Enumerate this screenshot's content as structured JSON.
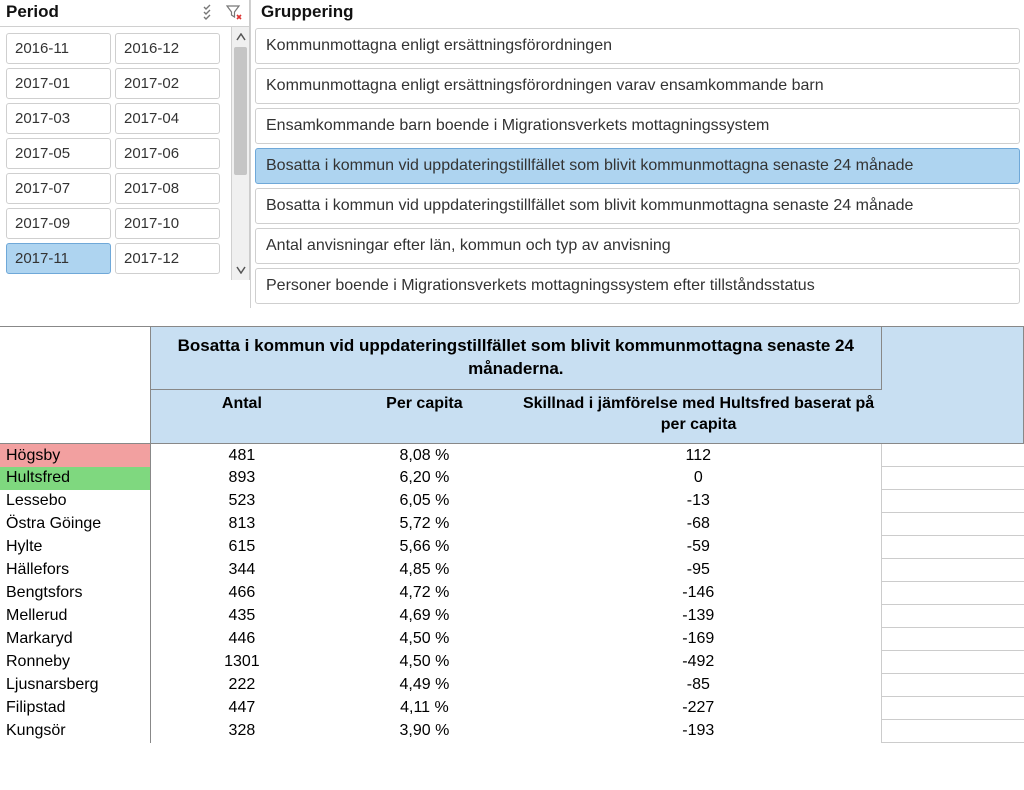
{
  "period": {
    "title": "Period",
    "items": [
      {
        "label": "2016-11",
        "selected": false
      },
      {
        "label": "2016-12",
        "selected": false
      },
      {
        "label": "2017-01",
        "selected": false
      },
      {
        "label": "2017-02",
        "selected": false
      },
      {
        "label": "2017-03",
        "selected": false
      },
      {
        "label": "2017-04",
        "selected": false
      },
      {
        "label": "2017-05",
        "selected": false
      },
      {
        "label": "2017-06",
        "selected": false
      },
      {
        "label": "2017-07",
        "selected": false
      },
      {
        "label": "2017-08",
        "selected": false
      },
      {
        "label": "2017-09",
        "selected": false
      },
      {
        "label": "2017-10",
        "selected": false
      },
      {
        "label": "2017-11",
        "selected": true
      },
      {
        "label": "2017-12",
        "selected": false
      }
    ]
  },
  "gruppering": {
    "title": "Gruppering",
    "items": [
      {
        "label": "Kommunmottagna enligt ersättningsförordningen",
        "selected": false
      },
      {
        "label": "Kommunmottagna enligt ersättningsförordningen  varav ensamkommande barn",
        "selected": false
      },
      {
        "label": "Ensamkommande barn boende i Migrationsverkets mottagningssystem",
        "selected": false
      },
      {
        "label": "Bosatta i kommun vid uppdateringstillfället som blivit kommunmottagna senaste 24 månade",
        "selected": true
      },
      {
        "label": "Bosatta i kommun vid uppdateringstillfället som blivit kommunmottagna senaste 24 månade",
        "selected": false
      },
      {
        "label": "Antal anvisningar efter län, kommun och typ av anvisning",
        "selected": false
      },
      {
        "label": "Personer boende i Migrationsverkets mottagningssystem efter tillståndsstatus",
        "selected": false
      }
    ]
  },
  "table": {
    "title": "Bosatta i kommun vid uppdateringstillfället som blivit kommunmottagna senaste 24 månaderna.",
    "columns": [
      "Antal",
      "Per capita",
      "Skillnad i jämförelse med Hultsfred baserat på per capita"
    ],
    "rows": [
      {
        "label": "Högsby",
        "antal": "481",
        "percap": "8,08 %",
        "diff": "112",
        "hl": "red"
      },
      {
        "label": "Hultsfred",
        "antal": "893",
        "percap": "6,20 %",
        "diff": "0",
        "hl": "green"
      },
      {
        "label": "Lessebo",
        "antal": "523",
        "percap": "6,05 %",
        "diff": "-13",
        "hl": ""
      },
      {
        "label": "Östra Göinge",
        "antal": "813",
        "percap": "5,72 %",
        "diff": "-68",
        "hl": ""
      },
      {
        "label": "Hylte",
        "antal": "615",
        "percap": "5,66 %",
        "diff": "-59",
        "hl": ""
      },
      {
        "label": "Hällefors",
        "antal": "344",
        "percap": "4,85 %",
        "diff": "-95",
        "hl": ""
      },
      {
        "label": "Bengtsfors",
        "antal": "466",
        "percap": "4,72 %",
        "diff": "-146",
        "hl": ""
      },
      {
        "label": "Mellerud",
        "antal": "435",
        "percap": "4,69 %",
        "diff": "-139",
        "hl": ""
      },
      {
        "label": "Markaryd",
        "antal": "446",
        "percap": "4,50 %",
        "diff": "-169",
        "hl": ""
      },
      {
        "label": "Ronneby",
        "antal": "1301",
        "percap": "4,50 %",
        "diff": "-492",
        "hl": ""
      },
      {
        "label": "Ljusnarsberg",
        "antal": "222",
        "percap": "4,49 %",
        "diff": "-85",
        "hl": ""
      },
      {
        "label": "Filipstad",
        "antal": "447",
        "percap": "4,11 %",
        "diff": "-227",
        "hl": ""
      },
      {
        "label": "Kungsör",
        "antal": "328",
        "percap": "3,90 %",
        "diff": "-193",
        "hl": ""
      }
    ],
    "colors": {
      "header_bg": "#c8dff2",
      "hl_red": "#f2a0a0",
      "hl_green": "#7fd87f",
      "slicer_selected": "#aed4f0"
    }
  }
}
